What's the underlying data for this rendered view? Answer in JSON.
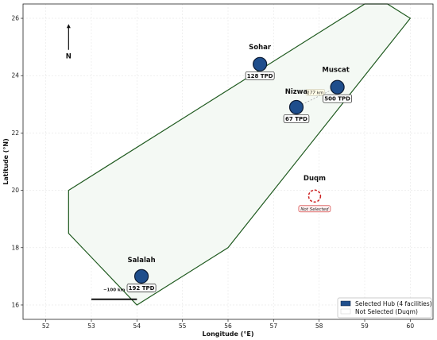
{
  "chart_data": {
    "type": "scatter",
    "xlabel": "Longitude (°E)",
    "ylabel": "Latitude (°N)",
    "xlim": [
      51.5,
      60.5
    ],
    "ylim": [
      15.5,
      26.5
    ],
    "xticks": [
      52,
      53,
      54,
      55,
      56,
      57,
      58,
      59,
      60
    ],
    "yticks": [
      16,
      18,
      20,
      22,
      24,
      26
    ],
    "grid": true,
    "hull": [
      [
        52.5,
        20
      ],
      [
        59,
        26.5
      ],
      [
        59.5,
        26.5
      ],
      [
        60,
        26
      ],
      [
        59.5,
        25
      ],
      [
        56,
        18
      ],
      [
        54,
        16
      ],
      [
        52.5,
        18.5
      ]
    ],
    "selected_hubs": [
      {
        "name": "Sohar",
        "lon": 56.7,
        "lat": 24.4,
        "capacity": "128 TPD"
      },
      {
        "name": "Muscat",
        "lon": 58.4,
        "lat": 23.6,
        "capacity": "500 TPD"
      },
      {
        "name": "Nizwa",
        "lon": 57.5,
        "lat": 22.9,
        "capacity": "67 TPD"
      },
      {
        "name": "Salalah",
        "lon": 54.1,
        "lat": 17.0,
        "capacity": "192 TPD"
      }
    ],
    "not_selected": [
      {
        "name": "Duqm",
        "lon": 57.9,
        "lat": 19.8,
        "label": "Not Selected"
      }
    ],
    "distance_annotation": {
      "text": "177 km",
      "from": "Nizwa",
      "to": "Muscat"
    },
    "north_arrow": {
      "label": "N",
      "lon": 52.5,
      "lat_from": 24.9,
      "lat_to": 25.8
    },
    "scale_bar": {
      "label": "~100 km",
      "lon_from": 53.0,
      "lon_to": 54.0,
      "lat": 16.2
    },
    "legend": {
      "position": "bottom-right",
      "items": [
        {
          "label": "Selected Hub (4 facilities)",
          "color": "#1f4e8c"
        },
        {
          "label": "Not Selected (Duqm)",
          "color": "#ffffff"
        }
      ]
    },
    "colors": {
      "hub_fill": "#1f4e8c",
      "hub_stroke": "#0b1a33",
      "hull_stroke": "#1f5a1f",
      "hull_fill": "#f4f9f4",
      "not_selected": "#cc2222"
    }
  }
}
